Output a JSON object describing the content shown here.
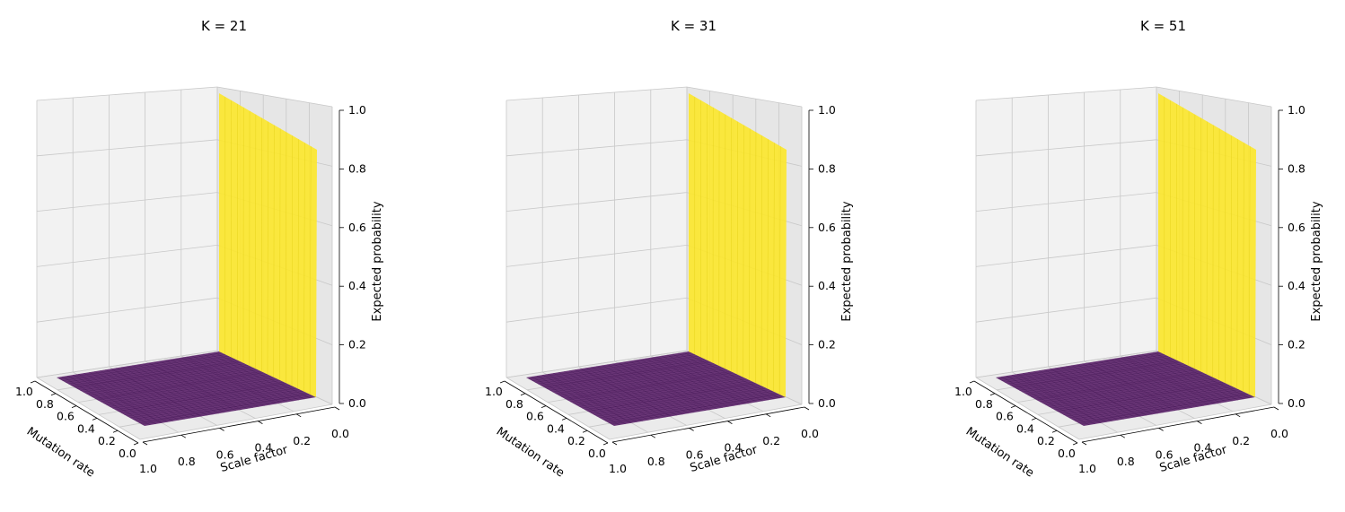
{
  "chart_data": [
    {
      "type": "surface3d",
      "title": "K = 21",
      "xlabel": "Mutation rate",
      "ylabel": "Scale factor",
      "zlabel": "Expected probability",
      "x_ticks": [
        "1.0",
        "0.8",
        "0.6",
        "0.4",
        "0.2",
        "0.0"
      ],
      "y_ticks": [
        "1.0",
        "0.8",
        "0.6",
        "0.4",
        "0.2",
        "0.0"
      ],
      "z_ticks": [
        "0.0",
        "0.2",
        "0.4",
        "0.6",
        "0.8",
        "1.0"
      ],
      "xlim": [
        0,
        1
      ],
      "ylim": [
        0,
        1
      ],
      "zlim": [
        0,
        1
      ],
      "surface": {
        "low_value": 0.0,
        "high_value": 1.0,
        "step_at_scale_factor": 0.0
      },
      "colors": {
        "low": "#440154",
        "high": "#fde725"
      }
    },
    {
      "type": "surface3d",
      "title": "K = 31",
      "xlabel": "Mutation rate",
      "ylabel": "Scale factor",
      "zlabel": "Expected probability",
      "x_ticks": [
        "1.0",
        "0.8",
        "0.6",
        "0.4",
        "0.2",
        "0.0"
      ],
      "y_ticks": [
        "1.0",
        "0.8",
        "0.6",
        "0.4",
        "0.2",
        "0.0"
      ],
      "z_ticks": [
        "0.0",
        "0.2",
        "0.4",
        "0.6",
        "0.8",
        "1.0"
      ],
      "xlim": [
        0,
        1
      ],
      "ylim": [
        0,
        1
      ],
      "zlim": [
        0,
        1
      ],
      "surface": {
        "low_value": 0.0,
        "high_value": 1.0,
        "step_at_scale_factor": 0.0
      },
      "colors": {
        "low": "#440154",
        "high": "#fde725"
      }
    },
    {
      "type": "surface3d",
      "title": "K = 51",
      "xlabel": "Mutation rate",
      "ylabel": "Scale factor",
      "zlabel": "Expected probability",
      "x_ticks": [
        "1.0",
        "0.8",
        "0.6",
        "0.4",
        "0.2",
        "0.0"
      ],
      "y_ticks": [
        "1.0",
        "0.8",
        "0.6",
        "0.4",
        "0.2",
        "0.0"
      ],
      "z_ticks": [
        "0.0",
        "0.2",
        "0.4",
        "0.6",
        "0.8",
        "1.0"
      ],
      "xlim": [
        0,
        1
      ],
      "ylim": [
        0,
        1
      ],
      "zlim": [
        0,
        1
      ],
      "surface": {
        "low_value": 0.0,
        "high_value": 1.0,
        "step_at_scale_factor": 0.0
      },
      "colors": {
        "low": "#440154",
        "high": "#fde725"
      }
    }
  ]
}
